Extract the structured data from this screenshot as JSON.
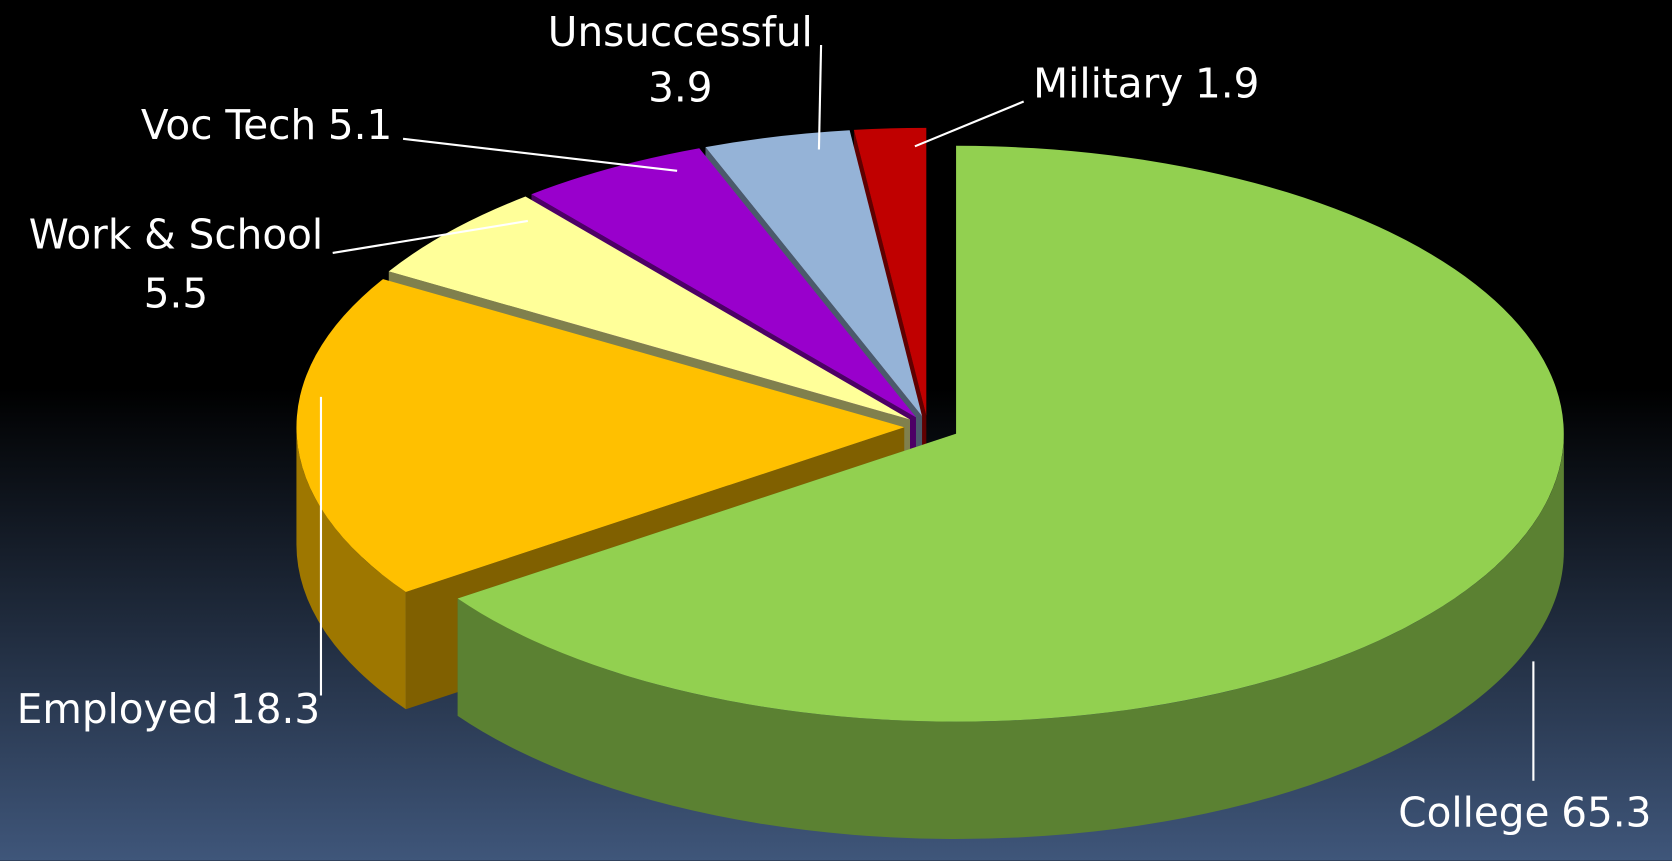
{
  "chart_data": {
    "type": "pie",
    "categories": [
      "College",
      "Employed",
      "Work & School",
      "Voc Tech",
      "Unsuccessful",
      "Military"
    ],
    "values": [
      65.3,
      18.3,
      5.5,
      5.1,
      3.9,
      1.9
    ],
    "colors": [
      "#92d050",
      "#ffc000",
      "#ffff99",
      "#9900cc",
      "#95b3d7",
      "#c00000"
    ]
  }
}
